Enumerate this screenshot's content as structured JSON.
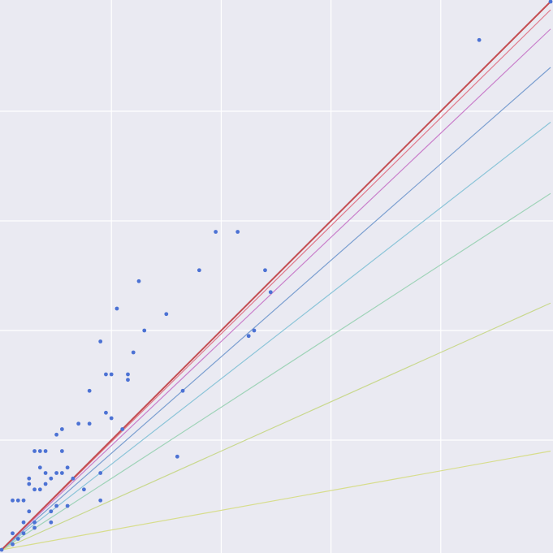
{
  "chart_data": {
    "type": "scatter",
    "title": "",
    "xlabel": "",
    "ylabel": "",
    "xlim": [
      0,
      1
    ],
    "ylim": [
      0,
      1
    ],
    "grid": true,
    "grid_ticks": [
      0.2,
      0.4,
      0.6,
      0.8
    ],
    "background_color": "#eaeaf2",
    "grid_color": "#ffffff",
    "marker_color": "#4c72d4",
    "points": [
      [
        0.0,
        0.0
      ],
      [
        0.02,
        0.01
      ],
      [
        0.03,
        0.02
      ],
      [
        0.02,
        0.03
      ],
      [
        0.04,
        0.03
      ],
      [
        0.04,
        0.05
      ],
      [
        0.06,
        0.04
      ],
      [
        0.06,
        0.05
      ],
      [
        0.05,
        0.07
      ],
      [
        0.09,
        0.05
      ],
      [
        0.1,
        0.08
      ],
      [
        0.09,
        0.07
      ],
      [
        0.12,
        0.08
      ],
      [
        0.15,
        0.11
      ],
      [
        0.18,
        0.14
      ],
      [
        0.18,
        0.09
      ],
      [
        0.13,
        0.13
      ],
      [
        0.02,
        0.09
      ],
      [
        0.03,
        0.09
      ],
      [
        0.04,
        0.09
      ],
      [
        0.05,
        0.12
      ],
      [
        0.06,
        0.11
      ],
      [
        0.07,
        0.11
      ],
      [
        0.08,
        0.12
      ],
      [
        0.08,
        0.14
      ],
      [
        0.09,
        0.13
      ],
      [
        0.1,
        0.14
      ],
      [
        0.11,
        0.14
      ],
      [
        0.12,
        0.15
      ],
      [
        0.05,
        0.13
      ],
      [
        0.07,
        0.15
      ],
      [
        0.08,
        0.18
      ],
      [
        0.06,
        0.18
      ],
      [
        0.07,
        0.18
      ],
      [
        0.1,
        0.21
      ],
      [
        0.11,
        0.22
      ],
      [
        0.11,
        0.18
      ],
      [
        0.16,
        0.23
      ],
      [
        0.14,
        0.23
      ],
      [
        0.19,
        0.25
      ],
      [
        0.2,
        0.24
      ],
      [
        0.16,
        0.29
      ],
      [
        0.19,
        0.32
      ],
      [
        0.2,
        0.32
      ],
      [
        0.23,
        0.31
      ],
      [
        0.18,
        0.38
      ],
      [
        0.24,
        0.36
      ],
      [
        0.21,
        0.44
      ],
      [
        0.25,
        0.49
      ],
      [
        0.26,
        0.4
      ],
      [
        0.23,
        0.32
      ],
      [
        0.3,
        0.43
      ],
      [
        0.36,
        0.51
      ],
      [
        0.39,
        0.58
      ],
      [
        0.43,
        0.58
      ],
      [
        0.33,
        0.29
      ],
      [
        0.32,
        0.17
      ],
      [
        0.22,
        0.22
      ],
      [
        0.45,
        0.39
      ],
      [
        0.46,
        0.4
      ],
      [
        0.49,
        0.47
      ],
      [
        0.48,
        0.51
      ],
      [
        0.87,
        0.93
      ],
      [
        1.0,
        1.0
      ]
    ],
    "reference_lines": [
      {
        "slope": 1.0,
        "color": "#c44e52"
      },
      {
        "slope": 0.985,
        "color": "#e07a8c"
      },
      {
        "slope": 0.95,
        "color": "#c97fcb"
      },
      {
        "slope": 0.88,
        "color": "#7b9fd0"
      },
      {
        "slope": 0.78,
        "color": "#8bc4d8"
      },
      {
        "slope": 0.65,
        "color": "#9fd3b8"
      },
      {
        "slope": 0.45,
        "color": "#c9d88e"
      },
      {
        "slope": 0.18,
        "color": "#d7dd8c"
      }
    ]
  }
}
